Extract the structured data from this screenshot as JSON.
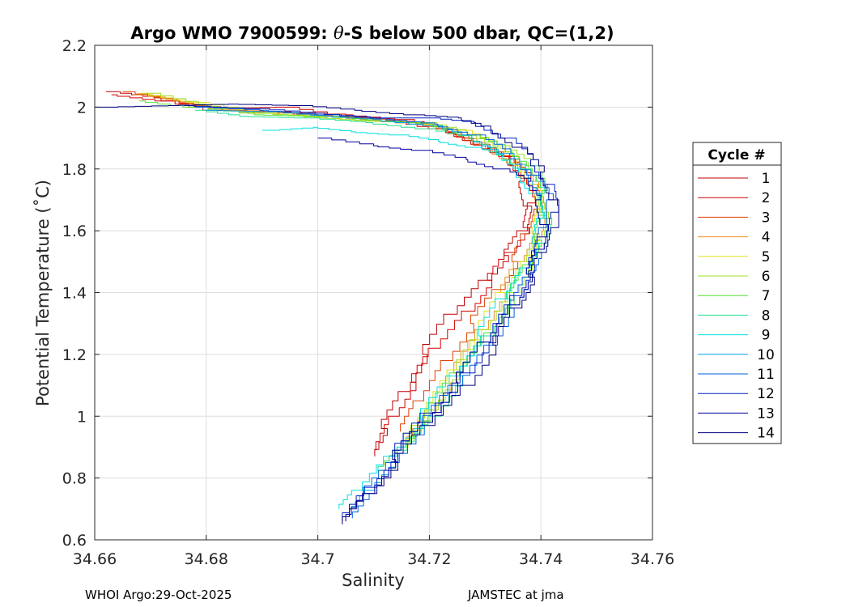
{
  "chart_data": {
    "type": "line",
    "title_prefix": "Argo WMO 7900599: ",
    "title_theta": "θ",
    "title_suffix": "-S below 500 dbar,  QC=(1,2)",
    "xlabel": "Salinity",
    "ylabel": "Potential Temperature (˚C)",
    "xlim": [
      34.66,
      34.76
    ],
    "ylim": [
      0.6,
      2.2
    ],
    "xticks": [
      "34.66",
      "34.68",
      "34.7",
      "34.72",
      "34.74",
      "34.76"
    ],
    "yticks": [
      "0.6",
      "0.8",
      "1",
      "1.2",
      "1.4",
      "1.6",
      "1.8",
      "2",
      "2.2"
    ],
    "grid": true,
    "legend_title": "Cycle #",
    "legend_position": "outside-right",
    "series": [
      {
        "name": "1",
        "color": "#c00000",
        "points": [
          [
            34.662,
            2.05
          ],
          [
            34.67,
            2.03
          ],
          [
            34.68,
            1.99
          ],
          [
            34.692,
            1.985
          ],
          [
            34.705,
            1.975
          ],
          [
            34.715,
            1.96
          ],
          [
            34.722,
            1.93
          ],
          [
            34.728,
            1.88
          ],
          [
            34.733,
            1.83
          ],
          [
            34.737,
            1.76
          ],
          [
            34.738,
            1.68
          ],
          [
            34.737,
            1.6
          ],
          [
            34.734,
            1.52
          ],
          [
            34.73,
            1.44
          ],
          [
            34.725,
            1.33
          ],
          [
            34.72,
            1.2
          ],
          [
            34.716,
            1.08
          ],
          [
            34.712,
            0.96
          ],
          [
            34.709,
            0.87
          ]
        ]
      },
      {
        "name": "2",
        "color": "#d40000",
        "points": [
          [
            34.663,
            2.04
          ],
          [
            34.672,
            2.02
          ],
          [
            34.682,
            1.995
          ],
          [
            34.693,
            2.0
          ],
          [
            34.703,
            1.97
          ],
          [
            34.713,
            1.96
          ],
          [
            34.721,
            1.93
          ],
          [
            34.727,
            1.89
          ],
          [
            34.733,
            1.84
          ],
          [
            34.737,
            1.77
          ],
          [
            34.739,
            1.69
          ],
          [
            34.738,
            1.61
          ],
          [
            34.735,
            1.53
          ],
          [
            34.731,
            1.44
          ],
          [
            34.727,
            1.34
          ],
          [
            34.722,
            1.22
          ],
          [
            34.718,
            1.11
          ],
          [
            34.714,
            1.0
          ],
          [
            34.711,
            0.89
          ]
        ]
      },
      {
        "name": "3",
        "color": "#e04000",
        "points": [
          [
            34.665,
            2.05
          ],
          [
            34.674,
            2.02
          ],
          [
            34.684,
            1.99
          ],
          [
            34.695,
            1.98
          ],
          [
            34.706,
            1.965
          ],
          [
            34.716,
            1.95
          ],
          [
            34.723,
            1.925
          ],
          [
            34.729,
            1.88
          ],
          [
            34.734,
            1.83
          ],
          [
            34.738,
            1.75
          ],
          [
            34.739,
            1.67
          ],
          [
            34.738,
            1.59
          ],
          [
            34.736,
            1.5
          ],
          [
            34.733,
            1.41
          ],
          [
            34.728,
            1.3
          ],
          [
            34.723,
            1.18
          ],
          [
            34.719,
            1.05
          ],
          [
            34.716,
            0.95
          ]
        ]
      },
      {
        "name": "4",
        "color": "#e89020",
        "points": [
          [
            34.667,
            2.04
          ],
          [
            34.676,
            2.01
          ],
          [
            34.686,
            1.985
          ],
          [
            34.697,
            1.975
          ],
          [
            34.707,
            1.96
          ],
          [
            34.717,
            1.945
          ],
          [
            34.724,
            1.92
          ],
          [
            34.73,
            1.875
          ],
          [
            34.735,
            1.82
          ],
          [
            34.739,
            1.74
          ],
          [
            34.74,
            1.66
          ],
          [
            34.739,
            1.58
          ],
          [
            34.737,
            1.5
          ],
          [
            34.734,
            1.4
          ],
          [
            34.73,
            1.28
          ],
          [
            34.725,
            1.14
          ],
          [
            34.72,
            1.01
          ],
          [
            34.716,
            0.91
          ]
        ]
      },
      {
        "name": "5",
        "color": "#e0e020",
        "points": [
          [
            34.668,
            2.045
          ],
          [
            34.677,
            2.015
          ],
          [
            34.687,
            1.985
          ],
          [
            34.698,
            1.97
          ],
          [
            34.708,
            1.955
          ],
          [
            34.718,
            1.95
          ],
          [
            34.725,
            1.925
          ],
          [
            34.731,
            1.88
          ],
          [
            34.736,
            1.83
          ],
          [
            34.739,
            1.75
          ],
          [
            34.74,
            1.67
          ],
          [
            34.739,
            1.59
          ],
          [
            34.737,
            1.5
          ],
          [
            34.734,
            1.4
          ],
          [
            34.73,
            1.28
          ],
          [
            34.725,
            1.15
          ],
          [
            34.72,
            1.01
          ],
          [
            34.715,
            0.9
          ],
          [
            34.712,
            0.84
          ]
        ]
      },
      {
        "name": "6",
        "color": "#a0e020",
        "points": [
          [
            34.669,
            2.045
          ],
          [
            34.678,
            2.01
          ],
          [
            34.688,
            1.98
          ],
          [
            34.699,
            1.965
          ],
          [
            34.709,
            1.955
          ],
          [
            34.719,
            1.95
          ],
          [
            34.726,
            1.92
          ],
          [
            34.732,
            1.875
          ],
          [
            34.737,
            1.82
          ],
          [
            34.74,
            1.74
          ],
          [
            34.741,
            1.66
          ],
          [
            34.74,
            1.58
          ],
          [
            34.738,
            1.5
          ],
          [
            34.735,
            1.4
          ],
          [
            34.731,
            1.28
          ],
          [
            34.726,
            1.15
          ],
          [
            34.721,
            1.02
          ],
          [
            34.716,
            0.92
          ]
        ]
      },
      {
        "name": "7",
        "color": "#50e030",
        "points": [
          [
            34.668,
            2.02
          ],
          [
            34.677,
            2.0
          ],
          [
            34.688,
            1.975
          ],
          [
            34.7,
            1.97
          ],
          [
            34.71,
            1.955
          ],
          [
            34.72,
            1.945
          ],
          [
            34.727,
            1.91
          ],
          [
            34.733,
            1.87
          ],
          [
            34.738,
            1.81
          ],
          [
            34.74,
            1.73
          ],
          [
            34.741,
            1.65
          ],
          [
            34.74,
            1.57
          ],
          [
            34.738,
            1.49
          ],
          [
            34.735,
            1.39
          ],
          [
            34.731,
            1.27
          ],
          [
            34.726,
            1.14
          ],
          [
            34.721,
            1.01
          ],
          [
            34.716,
            0.91
          ]
        ]
      },
      {
        "name": "8",
        "color": "#20e090",
        "points": [
          [
            34.678,
            1.99
          ],
          [
            34.686,
            1.97
          ],
          [
            34.697,
            1.965
          ],
          [
            34.708,
            1.95
          ],
          [
            34.718,
            1.93
          ],
          [
            34.726,
            1.9
          ],
          [
            34.732,
            1.86
          ],
          [
            34.737,
            1.8
          ],
          [
            34.74,
            1.72
          ],
          [
            34.741,
            1.64
          ],
          [
            34.74,
            1.56
          ],
          [
            34.738,
            1.48
          ],
          [
            34.735,
            1.38
          ],
          [
            34.731,
            1.26
          ],
          [
            34.726,
            1.13
          ],
          [
            34.721,
            1.0
          ],
          [
            34.716,
            0.89
          ],
          [
            34.712,
            0.82
          ]
        ]
      },
      {
        "name": "9",
        "color": "#00e0e0",
        "points": [
          [
            34.69,
            1.925
          ],
          [
            34.698,
            1.935
          ],
          [
            34.706,
            1.92
          ],
          [
            34.714,
            1.91
          ],
          [
            34.721,
            1.89
          ],
          [
            34.727,
            1.87
          ],
          [
            34.732,
            1.84
          ],
          [
            34.736,
            1.79
          ],
          [
            34.739,
            1.72
          ],
          [
            34.74,
            1.64
          ],
          [
            34.739,
            1.56
          ],
          [
            34.737,
            1.48
          ],
          [
            34.734,
            1.38
          ],
          [
            34.73,
            1.26
          ],
          [
            34.725,
            1.13
          ],
          [
            34.719,
            0.99
          ],
          [
            34.713,
            0.87
          ],
          [
            34.708,
            0.76
          ],
          [
            34.705,
            0.7
          ]
        ]
      },
      {
        "name": "10",
        "color": "#00a0e0",
        "points": [
          [
            34.68,
            1.99
          ],
          [
            34.69,
            1.985
          ],
          [
            34.7,
            1.97
          ],
          [
            34.71,
            1.96
          ],
          [
            34.72,
            1.94
          ],
          [
            34.727,
            1.9
          ],
          [
            34.733,
            1.85
          ],
          [
            34.737,
            1.78
          ],
          [
            34.74,
            1.7
          ],
          [
            34.741,
            1.62
          ],
          [
            34.74,
            1.54
          ],
          [
            34.738,
            1.46
          ],
          [
            34.735,
            1.36
          ],
          [
            34.731,
            1.24
          ],
          [
            34.726,
            1.11
          ],
          [
            34.72,
            0.98
          ],
          [
            34.714,
            0.86
          ],
          [
            34.709,
            0.76
          ],
          [
            34.706,
            0.69
          ]
        ]
      },
      {
        "name": "11",
        "color": "#0060e0",
        "points": [
          [
            34.678,
            2.0
          ],
          [
            34.689,
            1.99
          ],
          [
            34.7,
            1.975
          ],
          [
            34.711,
            1.96
          ],
          [
            34.721,
            1.945
          ],
          [
            34.728,
            1.91
          ],
          [
            34.734,
            1.85
          ],
          [
            34.738,
            1.78
          ],
          [
            34.741,
            1.7
          ],
          [
            34.741,
            1.61
          ],
          [
            34.74,
            1.53
          ],
          [
            34.738,
            1.45
          ],
          [
            34.735,
            1.35
          ],
          [
            34.731,
            1.23
          ],
          [
            34.726,
            1.1
          ],
          [
            34.72,
            0.97
          ],
          [
            34.714,
            0.85
          ],
          [
            34.709,
            0.75
          ],
          [
            34.705,
            0.67
          ]
        ]
      },
      {
        "name": "12",
        "color": "#0020c0",
        "points": [
          [
            34.676,
            2.005
          ],
          [
            34.688,
            1.995
          ],
          [
            34.699,
            1.98
          ],
          [
            34.71,
            1.965
          ],
          [
            34.72,
            1.965
          ],
          [
            34.728,
            1.95
          ],
          [
            34.734,
            1.9
          ],
          [
            34.738,
            1.83
          ],
          [
            34.741,
            1.75
          ],
          [
            34.742,
            1.66
          ],
          [
            34.741,
            1.58
          ],
          [
            34.739,
            1.49
          ],
          [
            34.736,
            1.39
          ],
          [
            34.732,
            1.27
          ],
          [
            34.727,
            1.14
          ],
          [
            34.721,
            1.01
          ],
          [
            34.715,
            0.88
          ],
          [
            34.71,
            0.77
          ],
          [
            34.705,
            0.66
          ]
        ]
      },
      {
        "name": "13",
        "color": "#0000a0",
        "points": [
          [
            34.7,
            1.9
          ],
          [
            34.71,
            1.875
          ],
          [
            34.718,
            1.86
          ],
          [
            34.726,
            1.83
          ],
          [
            34.732,
            1.8
          ],
          [
            34.737,
            1.76
          ],
          [
            34.74,
            1.7
          ],
          [
            34.741,
            1.62
          ],
          [
            34.74,
            1.54
          ],
          [
            34.738,
            1.46
          ],
          [
            34.735,
            1.36
          ],
          [
            34.731,
            1.24
          ],
          [
            34.726,
            1.11
          ],
          [
            34.72,
            0.98
          ],
          [
            34.714,
            0.86
          ],
          [
            34.709,
            0.75
          ],
          [
            34.705,
            0.66
          ]
        ]
      },
      {
        "name": "14",
        "color": "#000080",
        "points": [
          [
            34.66,
            2.0
          ],
          [
            34.672,
            2.005
          ],
          [
            34.684,
            2.01
          ],
          [
            34.696,
            2.005
          ],
          [
            34.706,
            1.99
          ],
          [
            34.716,
            1.975
          ],
          [
            34.724,
            1.965
          ],
          [
            34.731,
            1.93
          ],
          [
            34.736,
            1.87
          ],
          [
            34.74,
            1.79
          ],
          [
            34.742,
            1.7
          ],
          [
            34.742,
            1.61
          ],
          [
            34.741,
            1.53
          ],
          [
            34.739,
            1.45
          ],
          [
            34.736,
            1.35
          ],
          [
            34.732,
            1.23
          ],
          [
            34.727,
            1.1
          ],
          [
            34.721,
            0.97
          ],
          [
            34.715,
            0.85
          ],
          [
            34.71,
            0.75
          ],
          [
            34.705,
            0.65
          ]
        ]
      }
    ]
  },
  "footer": {
    "left": "WHOI Argo:29-Oct-2025",
    "right": "JAMSTEC at jma"
  }
}
